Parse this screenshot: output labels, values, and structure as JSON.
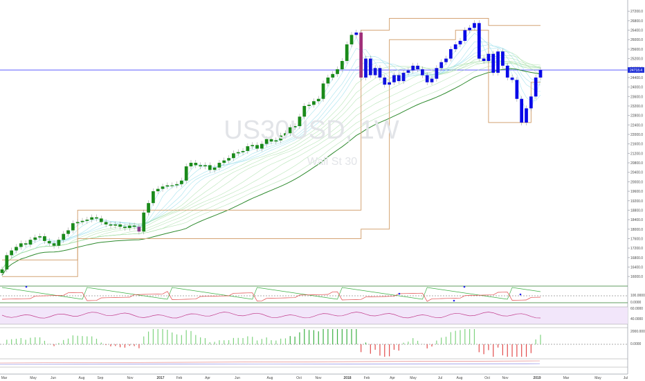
{
  "chart_data": {
    "type": "candlestick",
    "symbol": "US30USD, 1W",
    "description": "Wall St 30",
    "price_axis": {
      "ticks": [
        15600,
        16000,
        16400,
        16800,
        17200,
        17600,
        18000,
        18400,
        18800,
        19200,
        19600,
        20000,
        20400,
        20800,
        21200,
        21600,
        22000,
        22400,
        22800,
        23200,
        23600,
        24000,
        24400,
        24800,
        25200,
        25600,
        26000,
        26400,
        26800,
        27200,
        27600,
        28000
      ],
      "current_value": 24718.4,
      "current_label": "24718.4"
    },
    "time_axis": {
      "labels": [
        "Mar",
        "May",
        "Jun",
        "Aug",
        "Sep",
        "Nov",
        "2017",
        "Feb",
        "Apr",
        "Jun",
        "Aug",
        "Oct",
        "Nov",
        "2018",
        "Feb",
        "Apr",
        "May",
        "Jul",
        "Aug",
        "Oct",
        "Nov",
        "2019",
        "Mar",
        "May",
        "Jul"
      ]
    },
    "weekly_closes": [
      16300,
      16900,
      17100,
      17250,
      17400,
      17350,
      17550,
      17650,
      17700,
      17500,
      17400,
      17300,
      17550,
      17800,
      17950,
      18250,
      18300,
      18350,
      18400,
      18500,
      18450,
      18300,
      18200,
      18150,
      18200,
      18100,
      18050,
      18150,
      18100,
      17900,
      18700,
      19100,
      19600,
      19700,
      19800,
      19850,
      19850,
      19900,
      20050,
      20650,
      20800,
      20700,
      20650,
      20700,
      20500,
      20600,
      20800,
      20900,
      21000,
      21200,
      21250,
      21300,
      21500,
      21550,
      21400,
      21600,
      21800,
      21700,
      21750,
      21950,
      22050,
      22300,
      22350,
      22750,
      23200,
      23250,
      23400,
      23500,
      24150,
      24400,
      24550,
      24750,
      25100,
      25800,
      26200,
      26300,
      24400,
      25200,
      24500,
      24800,
      24400,
      24100,
      24200,
      24500,
      24250,
      24600,
      24700,
      24900,
      24750,
      24500,
      24200,
      24350,
      24800,
      25050,
      25200,
      25600,
      25800,
      25950,
      26400,
      26500,
      26700,
      25200,
      25100,
      25400,
      24600,
      25500,
      24900,
      24400,
      24300,
      23500,
      22500,
      23100,
      23600,
      24400,
      24718
    ],
    "channel_upper": [
      16700,
      18800,
      26400,
      26900,
      26900,
      26600,
      26600
    ],
    "channel_lower": [
      16000,
      17600,
      18000,
      26000,
      26400,
      22500,
      24200
    ],
    "oscillator1": {
      "levels": [
        100,
        0
      ]
    },
    "oscillator2": {
      "levels": [
        60,
        40
      ]
    },
    "oscillator3": {
      "levels": [
        2000,
        0
      ]
    }
  }
}
